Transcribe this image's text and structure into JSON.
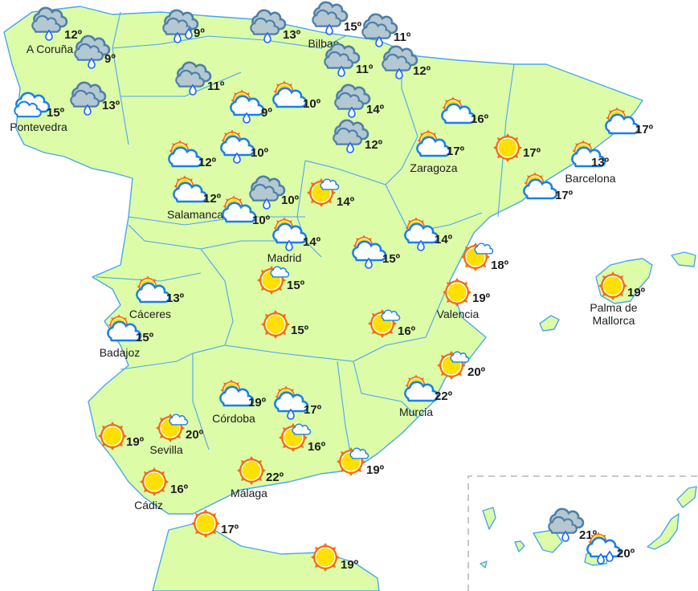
{
  "map": {
    "colors": {
      "land": "#dcfca8",
      "border": "#4aa6f0",
      "sun": "#ffe000",
      "sun_rays": "#f36f10",
      "rain_cloud": "#b4c8d2",
      "rain_cloud_stroke": "#4d7fa8",
      "cloud_stroke": "#1a80e6"
    },
    "stations": [
      {
        "name": "A Coruña",
        "temp": "12º",
        "icon": "rain-cloud-icon"
      },
      {
        "name": "",
        "temp": "9º",
        "icon": "rain-cloud-icon"
      },
      {
        "name": "Pontevedra",
        "temp": "15º",
        "icon": "cloud-icon"
      },
      {
        "name": "",
        "temp": "13º",
        "icon": "rain-cloud-icon"
      },
      {
        "name": "",
        "temp": "9º",
        "icon": "heavy-rain-cloud-icon"
      },
      {
        "name": "",
        "temp": "13º",
        "icon": "rain-cloud-icon"
      },
      {
        "name": "Bilbao",
        "temp": "15º",
        "icon": "rain-cloud-icon"
      },
      {
        "name": "",
        "temp": "11º",
        "icon": "rain-cloud-icon"
      },
      {
        "name": "",
        "temp": "11º",
        "icon": "rain-cloud-icon"
      },
      {
        "name": "",
        "temp": "12º",
        "icon": "rain-cloud-icon"
      },
      {
        "name": "",
        "temp": "11º",
        "icon": "rain-cloud-icon"
      },
      {
        "name": "",
        "temp": "9º",
        "icon": "sun-cloud-rain-icon"
      },
      {
        "name": "",
        "temp": "10º",
        "icon": "sun-cloud-icon"
      },
      {
        "name": "",
        "temp": "14º",
        "icon": "rain-cloud-icon"
      },
      {
        "name": "",
        "temp": "12º",
        "icon": "rain-cloud-icon"
      },
      {
        "name": "",
        "temp": "16º",
        "icon": "sun-cloud-icon"
      },
      {
        "name": "",
        "temp": "17º",
        "icon": "sun-cloud-icon"
      },
      {
        "name": "",
        "temp": "12º",
        "icon": "sun-cloud-icon"
      },
      {
        "name": "",
        "temp": "10º",
        "icon": "sun-cloud-rain-icon"
      },
      {
        "name": "Zaragoza",
        "temp": "17º",
        "icon": "sun-cloud-icon"
      },
      {
        "name": "",
        "temp": "17º",
        "icon": "sun-icon"
      },
      {
        "name": "Barcelona",
        "temp": "13º",
        "icon": "sun-cloud-icon"
      },
      {
        "name": "Salamanca",
        "temp": "12º",
        "icon": "sun-cloud-icon"
      },
      {
        "name": "",
        "temp": "10º",
        "icon": "rain-cloud-icon"
      },
      {
        "name": "",
        "temp": "14º",
        "icon": "sun-small-cloud-icon"
      },
      {
        "name": "",
        "temp": "10º",
        "icon": "sun-cloud-icon"
      },
      {
        "name": "",
        "temp": "17º",
        "icon": "sun-cloud-icon"
      },
      {
        "name": "Madrid",
        "temp": "14º",
        "icon": "sun-cloud-rain-icon"
      },
      {
        "name": "",
        "temp": "14º",
        "icon": "sun-cloud-rain-icon"
      },
      {
        "name": "",
        "temp": "15º",
        "icon": "sun-cloud-rain-icon"
      },
      {
        "name": "",
        "temp": "18º",
        "icon": "sun-small-cloud-icon"
      },
      {
        "name": "",
        "temp": "15º",
        "icon": "sun-small-cloud-icon"
      },
      {
        "name": "Cáceres",
        "temp": "13º",
        "icon": "sun-cloud-icon"
      },
      {
        "name": "Valencia",
        "temp": "19º",
        "icon": "sun-icon"
      },
      {
        "name": "Palma de Mallorca",
        "temp": "19º",
        "icon": "sun-icon"
      },
      {
        "name": "",
        "temp": "15º",
        "icon": "sun-icon"
      },
      {
        "name": "",
        "temp": "16º",
        "icon": "sun-small-cloud-icon"
      },
      {
        "name": "Badajoz",
        "temp": "15º",
        "icon": "sun-cloud-icon"
      },
      {
        "name": "",
        "temp": "20º",
        "icon": "sun-small-cloud-icon"
      },
      {
        "name": "Córdoba",
        "temp": "19º",
        "icon": "sun-cloud-icon"
      },
      {
        "name": "",
        "temp": "17º",
        "icon": "sun-cloud-rain-icon"
      },
      {
        "name": "Murcia",
        "temp": "22º",
        "icon": "sun-cloud-icon"
      },
      {
        "name": "",
        "temp": "19º",
        "icon": "sun-icon"
      },
      {
        "name": "Sevilla",
        "temp": "20º",
        "icon": "sun-small-cloud-icon"
      },
      {
        "name": "",
        "temp": "16º",
        "icon": "sun-small-cloud-icon"
      },
      {
        "name": "",
        "temp": "19º",
        "icon": "sun-small-cloud-icon"
      },
      {
        "name": "Cádiz",
        "temp": "16º",
        "icon": "sun-icon"
      },
      {
        "name": "Málaga",
        "temp": "22º",
        "icon": "sun-icon"
      },
      {
        "name": "",
        "temp": "17º",
        "icon": "sun-icon"
      },
      {
        "name": "",
        "temp": "19º",
        "icon": "sun-icon"
      },
      {
        "name": "",
        "temp": "21º",
        "icon": "rain-cloud-icon"
      },
      {
        "name": "",
        "temp": "20º",
        "icon": "sun-cloud-heavy-rain-icon"
      }
    ]
  }
}
